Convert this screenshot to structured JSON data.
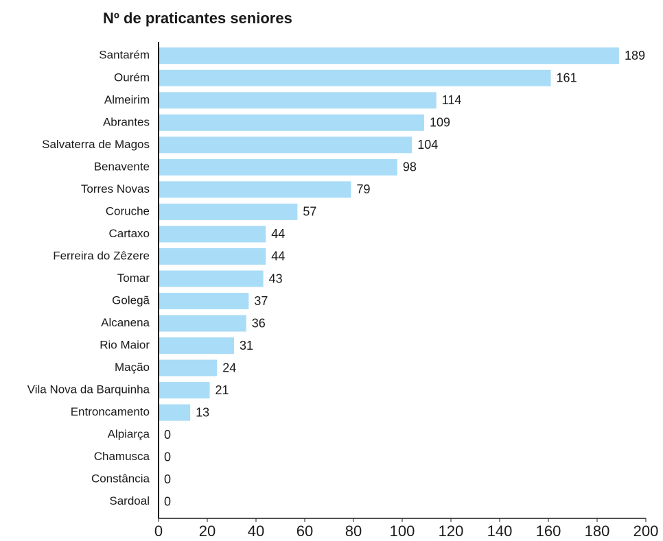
{
  "chart_data": {
    "type": "bar",
    "orientation": "horizontal",
    "title": "Nº de praticantes seniores",
    "categories": [
      "Santarém",
      "Ourém",
      "Almeirim",
      "Abrantes",
      "Salvaterra de Magos",
      "Benavente",
      "Torres Novas",
      "Coruche",
      "Cartaxo",
      "Ferreira do Zêzere",
      "Tomar",
      "Golegã",
      "Alcanena",
      "Rio Maior",
      "Mação",
      "Vila Nova da Barquinha",
      "Entroncamento",
      "Alpiarça",
      "Chamusca",
      "Constância",
      "Sardoal"
    ],
    "values": [
      189,
      161,
      114,
      109,
      104,
      98,
      79,
      57,
      44,
      44,
      43,
      37,
      36,
      31,
      24,
      21,
      13,
      0,
      0,
      0,
      0
    ],
    "color": "#a9dcf6",
    "xlim": [
      0,
      200
    ],
    "xticks": [
      0,
      20,
      40,
      60,
      80,
      100,
      120,
      140,
      160,
      180,
      200
    ],
    "grid": false
  }
}
